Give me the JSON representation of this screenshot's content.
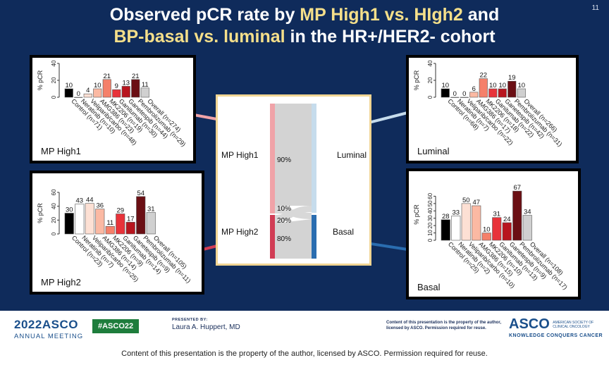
{
  "slide": {
    "number": "11",
    "title_line1": [
      "Observed pCR rate by ",
      "MP High1 vs. HIgh2",
      " and"
    ],
    "title_line2": [
      "BP-basal vs. luminal",
      " in the HR+/HER2- cohort"
    ]
  },
  "chart_data": [
    {
      "type": "bar",
      "panel": "MP High1",
      "border_color": "#e8a2a2",
      "ylabel": "% pCR",
      "ylim": [
        0,
        40
      ],
      "yticks": [
        0,
        20,
        40
      ],
      "categories": [
        "Control (n=71)",
        "Neratinib (n=10)",
        "Veliparib/carbo (n=48)",
        "AMG386 (n=23)",
        "MK2206 (n=19)",
        "Ganitumab (n=30)",
        "Ganetespib (n=44)",
        "Pembrolizumab (n=29)",
        "Overall (n=274)"
      ],
      "values": [
        10,
        0,
        4,
        10,
        21,
        9,
        13,
        21,
        11
      ],
      "colors": [
        "#000000",
        "#ffffff",
        "#fde0d4",
        "#fbb9a3",
        "#f5806a",
        "#e8333a",
        "#b8151e",
        "#6b0f14",
        "#d0d0d0"
      ]
    },
    {
      "type": "bar",
      "panel": "MP High2",
      "border_color": "#c8364a",
      "ylabel": "% pCR",
      "ylim": [
        0,
        60
      ],
      "yticks": [
        0,
        20,
        40,
        60
      ],
      "categories": [
        "Control (n=23)",
        "Neratinib (n=7)",
        "Veliparib/carbo (n=25)",
        "AMG386 (n=14)",
        "MK2206 (n=9)",
        "Ganitumab (n=14)",
        "Ganetespib (n=9)",
        "Pembrolizumab (n=11)",
        "Overall (n=105)"
      ],
      "values": [
        30,
        43,
        44,
        36,
        11,
        29,
        17,
        54,
        31
      ],
      "colors": [
        "#000000",
        "#ffffff",
        "#fde0d4",
        "#fbb9a3",
        "#f5806a",
        "#e8333a",
        "#b8151e",
        "#6b0f14",
        "#d0d0d0"
      ]
    },
    {
      "type": "bar",
      "panel": "Luminal",
      "border_color": "#c6dcec",
      "ylabel": "% pCR",
      "ylim": [
        0,
        40
      ],
      "yticks": [
        0,
        20,
        40
      ],
      "categories": [
        "Control (n=68)",
        "Neratinib (n=7)",
        "Veliparib/carbo (n=22)",
        "AMG386 (n=17)",
        "MK2206 (n=18)",
        "Ganitumab (n=22)",
        "Ganetespib (n=42)",
        "Pembrolizumab (n=31)",
        "Overall (n=266)"
      ],
      "values": [
        10,
        0,
        0,
        6,
        22,
        10,
        10,
        19,
        10
      ],
      "colors": [
        "#000000",
        "#ffffff",
        "#fde0d4",
        "#fbb9a3",
        "#f5806a",
        "#e8333a",
        "#b8151e",
        "#6b0f14",
        "#d0d0d0"
      ]
    },
    {
      "type": "bar",
      "panel": "Basal",
      "border_color": "#2265a8",
      "ylabel": "% pCR",
      "ylim": [
        0,
        70
      ],
      "yticks": [
        0,
        10,
        20,
        30,
        40,
        50,
        60
      ],
      "categories": [
        "Control (n=25)",
        "Neratinib (n=2)",
        "Veliparib/carbo (n=10)",
        "AMG386 (n=15)",
        "MK2206 (n=10)",
        "Ganitumab (n=13)",
        "Ganetespib (n=9)",
        "Pembrolizumab (n=17)",
        "Overall (n=108)"
      ],
      "values": [
        28,
        33,
        50,
        47,
        10,
        31,
        24,
        67,
        34
      ],
      "colors": [
        "#000000",
        "#ffffff",
        "#fde0d4",
        "#fbb9a3",
        "#f5806a",
        "#e8333a",
        "#b8151e",
        "#6b0f14",
        "#d0d0d0"
      ]
    },
    {
      "type": "sankey",
      "left_nodes": [
        {
          "label": "MP High1",
          "color": "#f0a3a8"
        },
        {
          "label": "MP High2",
          "color": "#d13d55"
        }
      ],
      "right_nodes": [
        {
          "label": "Luminal",
          "color": "#c6dcec"
        },
        {
          "label": "Basal",
          "color": "#2a6db0"
        }
      ],
      "flows": [
        {
          "from": "MP High1",
          "to": "Luminal",
          "percent_label": "90%"
        },
        {
          "from": "MP High1",
          "to": "Basal",
          "percent_label": "10%"
        },
        {
          "from": "MP High2",
          "to": "Luminal",
          "percent_label": "20%"
        },
        {
          "from": "MP High2",
          "to": "Basal",
          "percent_label": "80%"
        }
      ]
    }
  ],
  "footer": {
    "year": "2022",
    "asco": "ASCO",
    "meeting": "ANNUAL MEETING",
    "hashtag": "#ASCO22",
    "presented_by": "PRESENTED BY:",
    "presenter": "Laura A. Huppert, MD",
    "notice_small": "Content of this presentation is the property of the author, licensed by ASCO. Permission required for reuse.",
    "asco_logo": "ASCO",
    "society": "AMERICAN SOCIETY OF CLINICAL ONCOLOGY",
    "tagline": "KNOWLEDGE CONQUERS CANCER"
  },
  "bottom_notice": "Content of this presentation is the property of the author, licensed by ASCO. Permission required for reuse."
}
